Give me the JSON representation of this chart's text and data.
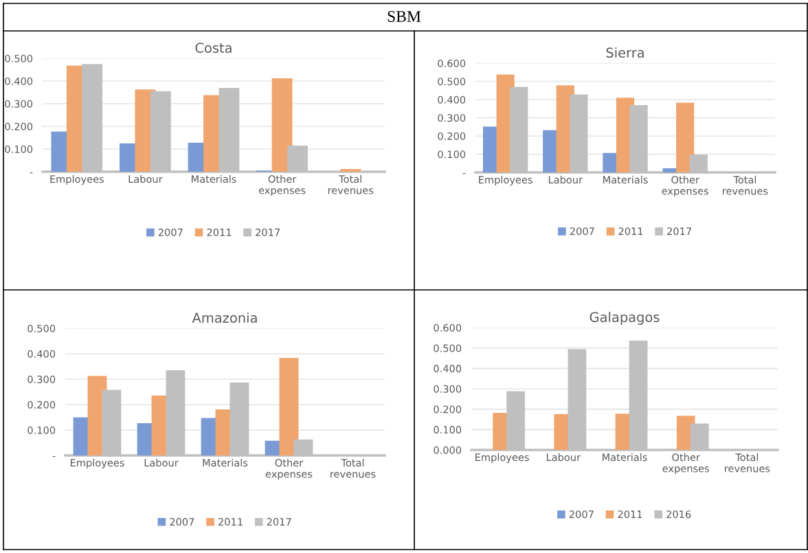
{
  "chart_data": [
    {
      "type": "bar",
      "title": "Costa",
      "annotations": [
        "SBM"
      ],
      "categories": [
        "Employees",
        "Labour",
        "Materials",
        "Other expenses",
        "Total revenues"
      ],
      "series": [
        {
          "name": "2007",
          "color": "#7a9ad6",
          "values": [
            0.177,
            0.125,
            0.128,
            0.005,
            0
          ]
        },
        {
          "name": "2011",
          "color": "#f0a56e",
          "values": [
            0.468,
            0.363,
            0.338,
            0.412,
            0.012
          ]
        },
        {
          "name": "2017",
          "color": "#bfbfbf",
          "values": [
            0.475,
            0.355,
            0.37,
            0.115,
            0
          ]
        }
      ],
      "ylim": [
        0,
        0.5
      ],
      "yticks": [
        {
          "value": 0,
          "label": "-"
        },
        {
          "value": 0.1,
          "label": "0.100"
        },
        {
          "value": 0.2,
          "label": "0.200"
        },
        {
          "value": 0.3,
          "label": "0.300"
        },
        {
          "value": 0.4,
          "label": "0.400"
        },
        {
          "value": 0.5,
          "label": "0.500"
        }
      ],
      "grid": "y",
      "legend": "bottom"
    },
    {
      "type": "bar",
      "title": "Sierra",
      "categories": [
        "Employees",
        "Labour",
        "Materials",
        "Other expenses",
        "Total revenues"
      ],
      "series": [
        {
          "name": "2007",
          "color": "#7a9ad6",
          "values": [
            0.252,
            0.232,
            0.107,
            0.023,
            0
          ]
        },
        {
          "name": "2011",
          "color": "#f0a56e",
          "values": [
            0.538,
            0.478,
            0.41,
            0.383,
            0
          ]
        },
        {
          "name": "2017",
          "color": "#bfbfbf",
          "values": [
            0.47,
            0.428,
            0.37,
            0.098,
            0
          ]
        }
      ],
      "ylim": [
        0,
        0.6
      ],
      "yticks": [
        {
          "value": 0,
          "label": "-"
        },
        {
          "value": 0.1,
          "label": "0.100"
        },
        {
          "value": 0.2,
          "label": "0.200"
        },
        {
          "value": 0.3,
          "label": "0.300"
        },
        {
          "value": 0.4,
          "label": "0.400"
        },
        {
          "value": 0.5,
          "label": "0.500"
        },
        {
          "value": 0.6,
          "label": "0.600"
        }
      ],
      "grid": "y",
      "legend": "bottom"
    },
    {
      "type": "bar",
      "title": "Amazonia",
      "categories": [
        "Employees",
        "Labour",
        "Materials",
        "Other expenses",
        "Total revenues"
      ],
      "series": [
        {
          "name": "2007",
          "color": "#7a9ad6",
          "values": [
            0.15,
            0.127,
            0.147,
            0.058,
            0
          ]
        },
        {
          "name": "2011",
          "color": "#f0a56e",
          "values": [
            0.313,
            0.236,
            0.181,
            0.384,
            0
          ]
        },
        {
          "name": "2017",
          "color": "#bfbfbf",
          "values": [
            0.258,
            0.335,
            0.287,
            0.063,
            0
          ]
        }
      ],
      "ylim": [
        0,
        0.5
      ],
      "yticks": [
        {
          "value": 0,
          "label": "-"
        },
        {
          "value": 0.1,
          "label": "0.100"
        },
        {
          "value": 0.2,
          "label": "0.200"
        },
        {
          "value": 0.3,
          "label": "0.300"
        },
        {
          "value": 0.4,
          "label": "0.400"
        },
        {
          "value": 0.5,
          "label": "0.500"
        }
      ],
      "grid": "y",
      "legend": "bottom"
    },
    {
      "type": "bar",
      "title": "Galapagos",
      "categories": [
        "Employees",
        "Labour",
        "Materials",
        "Other expenses",
        "Total revenues"
      ],
      "series": [
        {
          "name": "2007",
          "color": "#7a9ad6",
          "values": [
            0,
            0,
            0,
            0,
            0
          ]
        },
        {
          "name": "2011",
          "color": "#f0a56e",
          "values": [
            0.182,
            0.176,
            0.178,
            0.168,
            0
          ]
        },
        {
          "name": "2016",
          "color": "#bfbfbf",
          "values": [
            0.288,
            0.495,
            0.537,
            0.13,
            0
          ]
        }
      ],
      "ylim": [
        0,
        0.6
      ],
      "yticks": [
        {
          "value": 0,
          "label": "0.000"
        },
        {
          "value": 0.1,
          "label": "0.100"
        },
        {
          "value": 0.2,
          "label": "0.200"
        },
        {
          "value": 0.3,
          "label": "0.300"
        },
        {
          "value": 0.4,
          "label": "0.400"
        },
        {
          "value": 0.5,
          "label": "0.500"
        },
        {
          "value": 0.6,
          "label": "0.600"
        }
      ],
      "grid": "y",
      "legend": "bottom"
    }
  ]
}
